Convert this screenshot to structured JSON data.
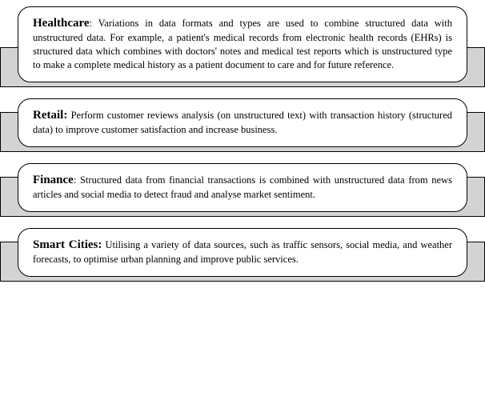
{
  "styling": {
    "background_color": "#ffffff",
    "backdrop_color": "#d3d3d3",
    "border_color": "#000000",
    "text_color": "#000000",
    "title_fontsize": 15,
    "body_fontsize": 12.5,
    "card_border_radius": 16,
    "font_family": "Georgia, Times New Roman, serif"
  },
  "blocks": [
    {
      "title": "Healthcare",
      "body": ": Variations in data formats and types are used to combine structured data with unstructured data. For example, a patient's medical records from electronic health records (EHRs) is structured data which combines with doctors' notes and medical test reports which is unstructured type to make a complete medical history as a patient document to care and for future reference."
    },
    {
      "title": "Retail:",
      "body": " Perform customer reviews analysis (on unstructured text) with transaction history (structured data) to improve customer satisfaction and increase business."
    },
    {
      "title": "Finance",
      "body": ": Structured data from financial transactions is combined with unstructured data from news articles and social media to detect fraud and analyse market sentiment."
    },
    {
      "title": "Smart Cities:",
      "body": " Utilising a variety of data sources, such as traffic sensors, social media, and weather forecasts, to optimise urban planning and improve public services."
    }
  ]
}
